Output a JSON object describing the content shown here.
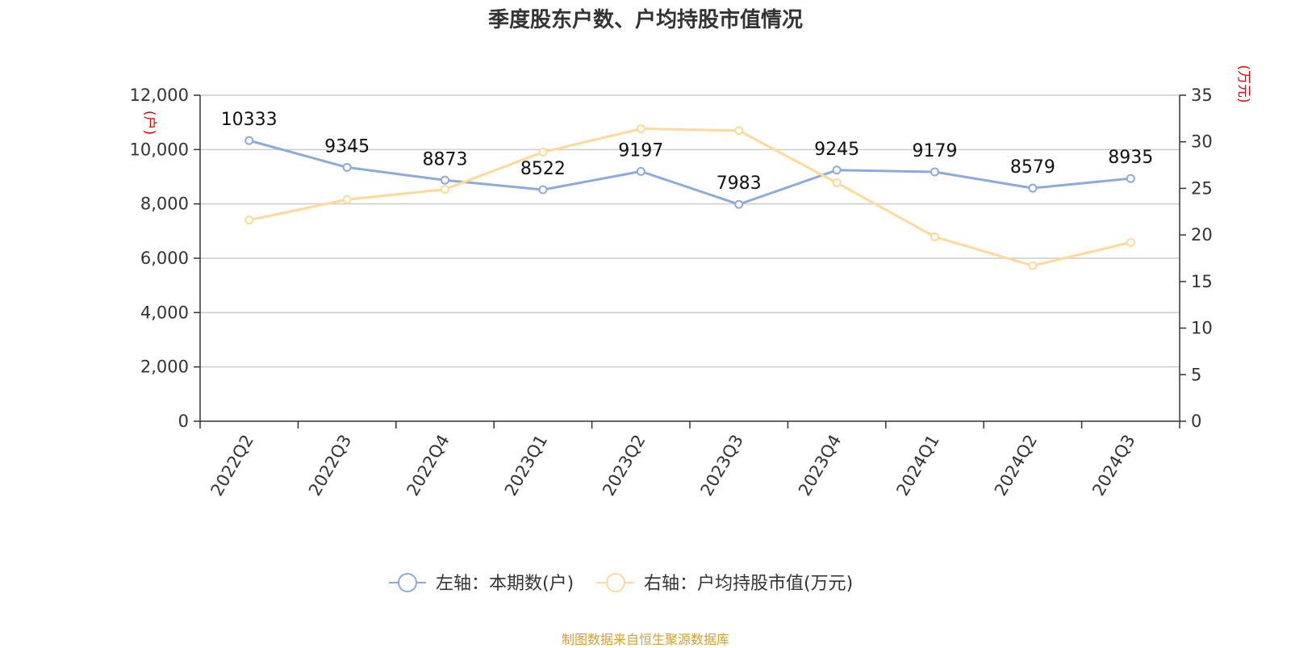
{
  "colors": {
    "series_left": "#8eaadb",
    "series_right": "#ffd99a",
    "unit": "#e60000",
    "source": "#d4a030"
  },
  "source_note": "制图数据来自恒生聚源数据库",
  "chart_data": {
    "type": "line",
    "title": "季度股东户数、户均持股市值情况",
    "categories": [
      "2022Q2",
      "2022Q3",
      "2022Q4",
      "2023Q1",
      "2023Q2",
      "2023Q3",
      "2023Q4",
      "2024Q1",
      "2024Q2",
      "2024Q3"
    ],
    "y_left": {
      "unit": "(户)",
      "range": [
        0,
        12000
      ],
      "ticks": [
        "0",
        "2,000",
        "4,000",
        "6,000",
        "8,000",
        "10,000",
        "12,000"
      ]
    },
    "y_right": {
      "unit": "(万元)",
      "range": [
        0,
        35
      ],
      "ticks": [
        "0",
        "5",
        "10",
        "15",
        "20",
        "25",
        "30",
        "35"
      ]
    },
    "grid": true,
    "legend_position": "bottom-center",
    "series": [
      {
        "name": "左轴：本期数(户)",
        "axis": "left",
        "values": [
          10333,
          9345,
          8873,
          8522,
          9197,
          7983,
          9245,
          9179,
          8579,
          8935
        ],
        "labels": [
          "10333",
          "9345",
          "8873",
          "8522",
          "9197",
          "7983",
          "9245",
          "9179",
          "8579",
          "8935"
        ]
      },
      {
        "name": "右轴：户均持股市值(万元)",
        "axis": "right",
        "values": [
          21.6,
          23.8,
          24.9,
          28.9,
          31.4,
          31.2,
          25.6,
          19.8,
          16.7,
          19.2
        ]
      }
    ]
  }
}
